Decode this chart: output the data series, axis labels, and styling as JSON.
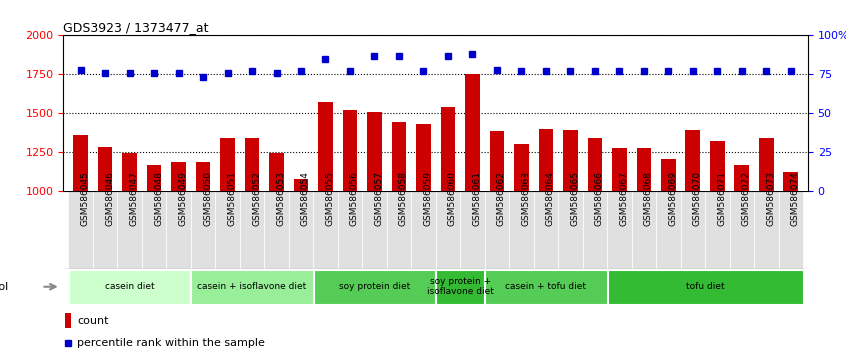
{
  "title": "GDS3923 / 1373477_at",
  "samples": [
    "GSM586045",
    "GSM586046",
    "GSM586047",
    "GSM586048",
    "GSM586049",
    "GSM586050",
    "GSM586051",
    "GSM586052",
    "GSM586053",
    "GSM586054",
    "GSM586055",
    "GSM586056",
    "GSM586057",
    "GSM586058",
    "GSM586059",
    "GSM586060",
    "GSM586061",
    "GSM586062",
    "GSM586063",
    "GSM586064",
    "GSM586065",
    "GSM586066",
    "GSM586067",
    "GSM586068",
    "GSM586069",
    "GSM586070",
    "GSM586071",
    "GSM586072",
    "GSM586073",
    "GSM586074"
  ],
  "counts": [
    1360,
    1285,
    1245,
    1170,
    1190,
    1185,
    1340,
    1340,
    1245,
    1075,
    1570,
    1520,
    1510,
    1445,
    1430,
    1540,
    1755,
    1385,
    1305,
    1400,
    1390,
    1340,
    1280,
    1275,
    1205,
    1390,
    1320,
    1165,
    1340,
    1120
  ],
  "percentile_ranks": [
    78,
    76,
    76,
    76,
    76,
    73,
    76,
    77,
    76,
    77,
    85,
    77,
    87,
    87,
    77,
    87,
    88,
    78,
    77,
    77,
    77,
    77,
    77,
    77,
    77,
    77,
    77,
    77,
    77,
    77
  ],
  "ylim_left": [
    1000,
    2000
  ],
  "ylim_right": [
    0,
    100
  ],
  "bar_color": "#cc0000",
  "dot_color": "#0000cc",
  "protocols": [
    {
      "label": "casein diet",
      "start": 0,
      "end": 5,
      "color": "#ccffcc"
    },
    {
      "label": "casein + isoflavone diet",
      "start": 5,
      "end": 10,
      "color": "#99ee99"
    },
    {
      "label": "soy protein diet",
      "start": 10,
      "end": 15,
      "color": "#55cc55"
    },
    {
      "label": "soy protein +\nisoflavone diet",
      "start": 15,
      "end": 17,
      "color": "#33bb33"
    },
    {
      "label": "casein + tofu diet",
      "start": 17,
      "end": 22,
      "color": "#55cc55"
    },
    {
      "label": "tofu diet",
      "start": 22,
      "end": 30,
      "color": "#33bb33"
    }
  ]
}
